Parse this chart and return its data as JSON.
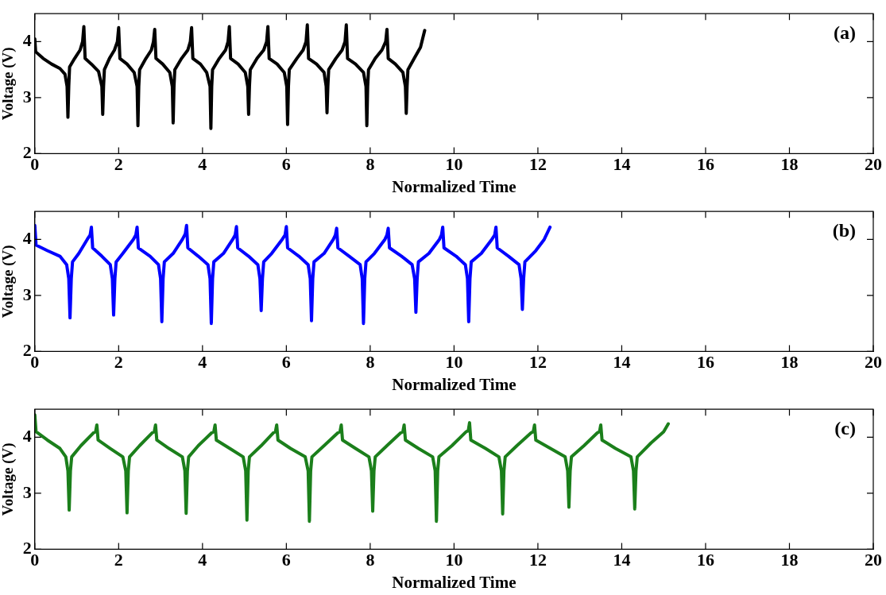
{
  "chart_data": [
    {
      "type": "line",
      "xlabel": "Normalized Time",
      "ylabel": "Voltage (V)",
      "annotations": [
        "(a)"
      ],
      "xlim": [
        0,
        20
      ],
      "xticks": [
        0,
        2,
        4,
        6,
        8,
        10,
        12,
        14,
        16,
        18,
        20
      ],
      "ylim": [
        2,
        4.5
      ],
      "yticks": [
        2,
        3,
        4
      ],
      "grid": false,
      "legend": false,
      "marker": "none",
      "series": [
        {
          "color": "#000000",
          "x": [
            0,
            0.02,
            0.2,
            0.4,
            0.6,
            0.72,
            0.77,
            0.79,
            0.81,
            0.83,
            0.95,
            1.08,
            1.14,
            1.17,
            1.2,
            1.35,
            1.52,
            1.6,
            1.62,
            1.64,
            1.66,
            1.78,
            1.9,
            1.97,
            2.0,
            2.03,
            2.2,
            2.37,
            2.44,
            2.46,
            2.48,
            2.5,
            2.65,
            2.78,
            2.83,
            2.86,
            2.89,
            3.05,
            3.22,
            3.28,
            3.3,
            3.32,
            3.34,
            3.5,
            3.65,
            3.71,
            3.74,
            3.77,
            3.95,
            4.1,
            4.18,
            4.2,
            4.22,
            4.24,
            4.4,
            4.55,
            4.61,
            4.64,
            4.67,
            4.85,
            5.02,
            5.08,
            5.1,
            5.12,
            5.14,
            5.3,
            5.46,
            5.53,
            5.56,
            5.59,
            5.78,
            5.95,
            6.01,
            6.03,
            6.05,
            6.07,
            6.25,
            6.4,
            6.47,
            6.5,
            6.53,
            6.72,
            6.9,
            6.95,
            6.97,
            6.99,
            7.01,
            7.18,
            7.33,
            7.4,
            7.43,
            7.46,
            7.65,
            7.84,
            7.9,
            7.92,
            7.94,
            7.96,
            8.12,
            8.28,
            8.37,
            8.4,
            8.43,
            8.6,
            8.78,
            8.84,
            8.86,
            8.88,
            8.9,
            9.05,
            9.2,
            9.3
          ],
          "values": [
            4.05,
            3.82,
            3.7,
            3.6,
            3.52,
            3.42,
            3.2,
            2.65,
            3.2,
            3.55,
            3.7,
            3.85,
            4.0,
            4.27,
            3.7,
            3.6,
            3.47,
            3.2,
            2.7,
            3.2,
            3.5,
            3.7,
            3.85,
            4.0,
            4.25,
            3.7,
            3.6,
            3.45,
            3.2,
            2.5,
            3.2,
            3.5,
            3.7,
            3.85,
            4.0,
            4.22,
            3.7,
            3.6,
            3.45,
            3.2,
            2.55,
            3.2,
            3.5,
            3.7,
            3.85,
            4.0,
            4.25,
            3.7,
            3.6,
            3.45,
            3.2,
            2.45,
            3.2,
            3.5,
            3.7,
            3.85,
            4.0,
            4.27,
            3.7,
            3.6,
            3.45,
            3.2,
            2.7,
            3.2,
            3.5,
            3.7,
            3.85,
            4.0,
            4.27,
            3.7,
            3.6,
            3.45,
            3.2,
            2.52,
            3.2,
            3.5,
            3.7,
            3.85,
            4.0,
            4.3,
            3.7,
            3.6,
            3.45,
            3.2,
            2.73,
            3.2,
            3.5,
            3.7,
            3.85,
            4.0,
            4.3,
            3.7,
            3.6,
            3.45,
            3.2,
            2.5,
            3.2,
            3.5,
            3.7,
            3.85,
            4.0,
            4.22,
            3.7,
            3.6,
            3.45,
            3.2,
            2.72,
            3.2,
            3.5,
            3.7,
            3.9,
            4.2
          ]
        }
      ]
    },
    {
      "type": "line",
      "xlabel": "Normalized Time",
      "ylabel": "Voltage (V)",
      "annotations": [
        "(b)"
      ],
      "xlim": [
        0,
        20
      ],
      "xticks": [
        0,
        2,
        4,
        6,
        8,
        10,
        12,
        14,
        16,
        18,
        20
      ],
      "ylim": [
        2,
        4.5
      ],
      "yticks": [
        2,
        3,
        4
      ],
      "grid": false,
      "legend": false,
      "marker": "none",
      "series": [
        {
          "color": "#0000ff",
          "x": [
            0,
            0.03,
            0.3,
            0.6,
            0.76,
            0.81,
            0.84,
            0.87,
            0.9,
            1.05,
            1.25,
            1.32,
            1.35,
            1.38,
            1.6,
            1.8,
            1.85,
            1.88,
            1.91,
            1.94,
            2.1,
            2.35,
            2.41,
            2.44,
            2.47,
            2.75,
            2.95,
            3.0,
            3.03,
            3.06,
            3.09,
            3.3,
            3.52,
            3.59,
            3.62,
            3.65,
            3.9,
            4.13,
            4.18,
            4.21,
            4.24,
            4.27,
            4.5,
            4.72,
            4.78,
            4.81,
            4.84,
            5.1,
            5.32,
            5.37,
            5.4,
            5.43,
            5.46,
            5.65,
            5.9,
            5.97,
            6.0,
            6.03,
            6.3,
            6.52,
            6.57,
            6.6,
            6.63,
            6.66,
            6.9,
            7.12,
            7.17,
            7.2,
            7.23,
            7.5,
            7.76,
            7.81,
            7.84,
            7.87,
            7.9,
            8.1,
            8.35,
            8.4,
            8.43,
            8.46,
            8.75,
            9.0,
            9.06,
            9.09,
            9.12,
            9.15,
            9.4,
            9.65,
            9.7,
            9.73,
            9.76,
            10.05,
            10.27,
            10.32,
            10.35,
            10.38,
            10.41,
            10.65,
            10.9,
            10.97,
            11.0,
            11.03,
            11.3,
            11.55,
            11.6,
            11.63,
            11.66,
            11.69,
            11.95,
            12.15,
            12.29
          ],
          "values": [
            4.25,
            3.9,
            3.8,
            3.7,
            3.55,
            3.3,
            2.6,
            3.3,
            3.6,
            3.75,
            4.0,
            4.08,
            4.22,
            3.85,
            3.7,
            3.55,
            3.3,
            2.65,
            3.3,
            3.6,
            3.75,
            4.0,
            4.08,
            4.22,
            3.85,
            3.7,
            3.55,
            3.3,
            2.53,
            3.3,
            3.6,
            3.75,
            4.0,
            4.1,
            4.25,
            3.85,
            3.7,
            3.55,
            3.3,
            2.5,
            3.3,
            3.6,
            3.75,
            4.0,
            4.08,
            4.23,
            3.85,
            3.7,
            3.55,
            3.3,
            2.73,
            3.3,
            3.6,
            3.75,
            4.0,
            4.08,
            4.23,
            3.85,
            3.7,
            3.55,
            3.3,
            2.55,
            3.3,
            3.6,
            3.75,
            4.0,
            4.08,
            4.2,
            3.85,
            3.7,
            3.55,
            3.3,
            2.5,
            3.3,
            3.6,
            3.75,
            4.0,
            4.08,
            4.2,
            3.85,
            3.7,
            3.55,
            3.3,
            2.7,
            3.3,
            3.6,
            3.75,
            4.0,
            4.08,
            4.22,
            3.85,
            3.7,
            3.55,
            3.3,
            2.53,
            3.3,
            3.6,
            3.75,
            4.0,
            4.08,
            4.22,
            3.85,
            3.7,
            3.55,
            3.3,
            2.75,
            3.3,
            3.6,
            3.8,
            4.0,
            4.22
          ]
        }
      ]
    },
    {
      "type": "line",
      "xlabel": "Normalized Time",
      "ylabel": "Voltage (V)",
      "annotations": [
        "(c)"
      ],
      "xlim": [
        0,
        20
      ],
      "xticks": [
        0,
        2,
        4,
        6,
        8,
        10,
        12,
        14,
        16,
        18,
        20
      ],
      "ylim": [
        2,
        4.5
      ],
      "yticks": [
        2,
        3,
        4
      ],
      "grid": false,
      "legend": false,
      "marker": "none",
      "series": [
        {
          "color": "#1b7f1b",
          "x": [
            0,
            0.03,
            0.3,
            0.6,
            0.74,
            0.79,
            0.82,
            0.85,
            0.88,
            1.1,
            1.4,
            1.45,
            1.48,
            1.51,
            1.8,
            2.1,
            2.17,
            2.2,
            2.23,
            2.26,
            2.5,
            2.8,
            2.85,
            2.88,
            2.91,
            3.2,
            3.52,
            3.58,
            3.61,
            3.64,
            3.67,
            3.9,
            4.22,
            4.27,
            4.3,
            4.33,
            4.65,
            4.97,
            5.03,
            5.06,
            5.09,
            5.12,
            5.4,
            5.69,
            5.74,
            5.77,
            5.8,
            6.1,
            6.45,
            6.52,
            6.55,
            6.58,
            6.61,
            6.9,
            7.23,
            7.28,
            7.31,
            7.34,
            7.65,
            7.97,
            8.03,
            8.06,
            8.09,
            8.12,
            8.4,
            8.73,
            8.78,
            8.81,
            8.84,
            9.15,
            9.49,
            9.55,
            9.58,
            9.61,
            9.64,
            9.95,
            10.29,
            10.34,
            10.37,
            10.4,
            10.75,
            11.07,
            11.13,
            11.16,
            11.19,
            11.22,
            11.5,
            11.84,
            11.89,
            11.92,
            11.95,
            12.3,
            12.65,
            12.71,
            12.74,
            12.77,
            12.8,
            13.1,
            13.42,
            13.47,
            13.5,
            13.53,
            13.85,
            14.22,
            14.28,
            14.31,
            14.34,
            14.37,
            14.7,
            15.0,
            15.11
          ],
          "values": [
            4.4,
            4.1,
            3.95,
            3.8,
            3.65,
            3.4,
            2.7,
            3.4,
            3.65,
            3.85,
            4.08,
            4.1,
            4.22,
            3.95,
            3.8,
            3.65,
            3.4,
            2.65,
            3.4,
            3.65,
            3.85,
            4.08,
            4.1,
            4.22,
            3.95,
            3.8,
            3.65,
            3.4,
            2.64,
            3.4,
            3.65,
            3.85,
            4.08,
            4.1,
            4.22,
            3.95,
            3.8,
            3.65,
            3.4,
            2.52,
            3.4,
            3.65,
            3.85,
            4.08,
            4.1,
            4.22,
            3.95,
            3.8,
            3.65,
            3.4,
            2.5,
            3.4,
            3.65,
            3.85,
            4.08,
            4.1,
            4.22,
            3.95,
            3.8,
            3.65,
            3.4,
            2.68,
            3.4,
            3.65,
            3.85,
            4.08,
            4.1,
            4.22,
            3.95,
            3.8,
            3.65,
            3.4,
            2.5,
            3.4,
            3.65,
            3.85,
            4.1,
            4.12,
            4.26,
            3.95,
            3.8,
            3.65,
            3.4,
            2.63,
            3.4,
            3.65,
            3.85,
            4.08,
            4.1,
            4.22,
            3.95,
            3.8,
            3.65,
            3.4,
            2.75,
            3.4,
            3.65,
            3.85,
            4.08,
            4.1,
            4.22,
            3.95,
            3.8,
            3.65,
            3.4,
            2.72,
            3.4,
            3.65,
            3.9,
            4.1,
            4.24
          ]
        }
      ]
    }
  ]
}
